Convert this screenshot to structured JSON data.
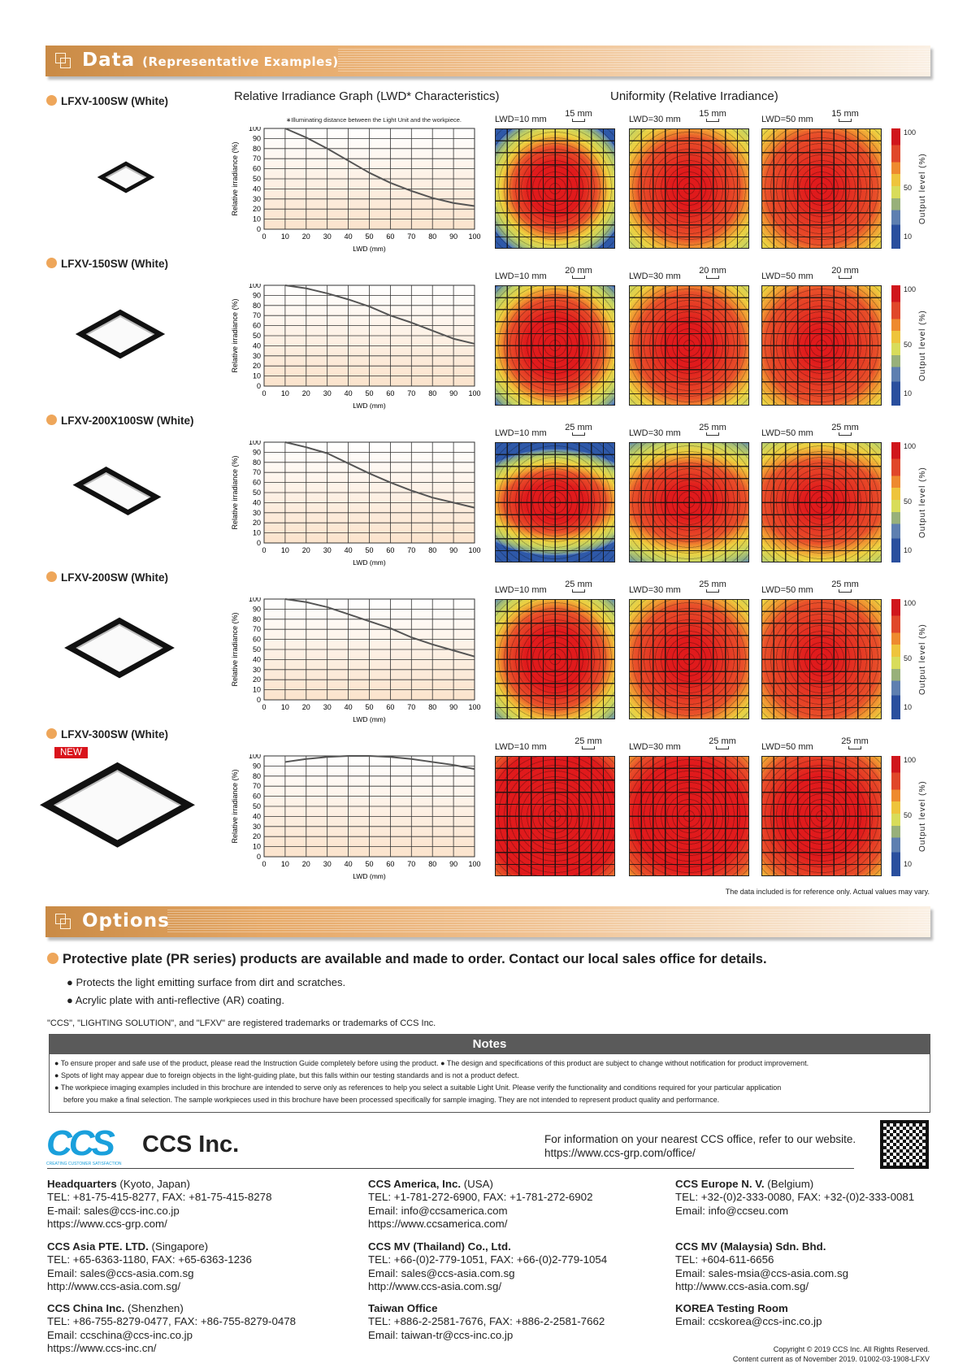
{
  "data_section": {
    "title": "Data",
    "subtitle": "(Representative Examples)",
    "graph_title": "Relative Irradiance Graph (LWD* Characteristics)",
    "uniformity_title": "Uniformity (Relative Irradiance)",
    "footnote": "∗Illuminating distance between the Light Unit and the workpiece.",
    "colorbar_label": "Output level (%)",
    "colorbar_ticks": [
      "100",
      "50",
      "10"
    ],
    "disclaimer": "The data included is for reference only. Actual values may vary."
  },
  "products": [
    {
      "name": "LFXV-100SW (White)",
      "scale": "15 mm",
      "lwd_labels": [
        "LWD=10 mm",
        "LWD=30 mm",
        "LWD=50 mm"
      ]
    },
    {
      "name": "LFXV-150SW (White)",
      "scale": "20 mm",
      "lwd_labels": [
        "LWD=10 mm",
        "LWD=30 mm",
        "LWD=50 mm"
      ]
    },
    {
      "name": "LFXV-200X100SW (White)",
      "scale": "25 mm",
      "lwd_labels": [
        "LWD=10 mm",
        "LWD=30 mm",
        "LWD=50 mm"
      ]
    },
    {
      "name": "LFXV-200SW (White)",
      "scale": "25 mm",
      "lwd_labels": [
        "LWD=10 mm",
        "LWD=30 mm",
        "LWD=50 mm"
      ]
    },
    {
      "name": "LFXV-300SW (White)",
      "badge": "NEW",
      "scale": "25 mm",
      "lwd_labels": [
        "LWD=10 mm",
        "LWD=30 mm",
        "LWD=50 mm"
      ]
    }
  ],
  "chart_data": [
    {
      "type": "line",
      "title": "LFXV-100SW (White)",
      "xlabel": "LWD (mm)",
      "ylabel": "Relative irradiance (%)",
      "xlim": [
        0,
        100
      ],
      "ylim": [
        0,
        100
      ],
      "xticks": [
        0,
        10,
        20,
        30,
        40,
        50,
        60,
        70,
        80,
        90,
        100
      ],
      "yticks": [
        0,
        10,
        20,
        30,
        40,
        50,
        60,
        70,
        80,
        90,
        100
      ],
      "x": [
        10,
        20,
        30,
        40,
        50,
        60,
        70,
        80,
        90,
        100
      ],
      "y": [
        100,
        91,
        80,
        68,
        56,
        46,
        38,
        31,
        26,
        23
      ]
    },
    {
      "type": "line",
      "title": "LFXV-150SW (White)",
      "xlabel": "LWD (mm)",
      "ylabel": "Relative irradiance (%)",
      "xlim": [
        0,
        100
      ],
      "ylim": [
        0,
        100
      ],
      "xticks": [
        0,
        10,
        20,
        30,
        40,
        50,
        60,
        70,
        80,
        90,
        100
      ],
      "yticks": [
        0,
        10,
        20,
        30,
        40,
        50,
        60,
        70,
        80,
        90,
        100
      ],
      "x": [
        10,
        20,
        30,
        40,
        50,
        60,
        70,
        80,
        90,
        100
      ],
      "y": [
        100,
        97,
        92,
        86,
        79,
        70,
        63,
        55,
        47,
        42
      ]
    },
    {
      "type": "line",
      "title": "LFXV-200X100SW (White)",
      "xlabel": "LWD (mm)",
      "ylabel": "Relative irradiance (%)",
      "xlim": [
        0,
        100
      ],
      "ylim": [
        0,
        100
      ],
      "xticks": [
        0,
        10,
        20,
        30,
        40,
        50,
        60,
        70,
        80,
        90,
        100
      ],
      "yticks": [
        0,
        10,
        20,
        30,
        40,
        50,
        60,
        70,
        80,
        90,
        100
      ],
      "x": [
        10,
        20,
        30,
        40,
        50,
        60,
        70,
        80,
        90,
        100
      ],
      "y": [
        100,
        95,
        89,
        79,
        69,
        60,
        52,
        45,
        40,
        35
      ]
    },
    {
      "type": "line",
      "title": "LFXV-200SW (White)",
      "xlabel": "LWD (mm)",
      "ylabel": "Relative irradiance (%)",
      "xlim": [
        0,
        100
      ],
      "ylim": [
        0,
        100
      ],
      "xticks": [
        0,
        10,
        20,
        30,
        40,
        50,
        60,
        70,
        80,
        90,
        100
      ],
      "yticks": [
        0,
        10,
        20,
        30,
        40,
        50,
        60,
        70,
        80,
        90,
        100
      ],
      "x": [
        10,
        20,
        30,
        40,
        50,
        60,
        70,
        80,
        90,
        100
      ],
      "y": [
        100,
        97,
        92,
        85,
        78,
        71,
        62,
        55,
        49,
        43
      ]
    },
    {
      "type": "line",
      "title": "LFXV-300SW (White)",
      "xlabel": "LWD (mm)",
      "ylabel": "Relative irradiance (%)",
      "xlim": [
        0,
        100
      ],
      "ylim": [
        0,
        100
      ],
      "xticks": [
        0,
        10,
        20,
        30,
        40,
        50,
        60,
        70,
        80,
        90,
        100
      ],
      "yticks": [
        0,
        10,
        20,
        30,
        40,
        50,
        60,
        70,
        80,
        90,
        100
      ],
      "x": [
        10,
        20,
        30,
        40,
        50,
        60,
        70,
        80,
        90,
        100
      ],
      "y": [
        94,
        97,
        99,
        100,
        100,
        99,
        97,
        94,
        91,
        87
      ]
    }
  ],
  "options": {
    "title": "Options",
    "headline": "Protective plate (PR series) products are available and made to order. Contact our local sales office for details.",
    "bullets": [
      "Protects the light emitting surface from dirt and scratches.",
      "Acrylic plate with anti-reflective (AR) coating."
    ],
    "trademark": "\"CCS\", \"LIGHTING SOLUTION\", and \"LFXV\" are registered trademarks or trademarks of CCS Inc."
  },
  "notes": {
    "title": "Notes",
    "items": [
      "To ensure proper and safe use of the product, please read the Instruction Guide completely before using the product.",
      "The design and specifications of this product are subject to change without notification for product improvement.",
      "Spots of light may appear due to foreign objects in the light-guiding plate, but this falls within our testing standards and is not a product defect.",
      "The workpiece imaging examples included in this brochure are intended to serve only as references to help you select a suitable Light Unit. Please verify the functionality and conditions required for your particular application",
      "before you make a final selection. The sample workpieces used in this brochure have been processed specifically for sample imaging. They are not intended to represent product quality and performance."
    ]
  },
  "company": {
    "logo": "CCS",
    "tagline": "Creating Customer Satisfaction",
    "name": "CCS Inc.",
    "info": "For information on your nearest CCS office, refer to our website.",
    "url": "https://www.ccs-grp.com/office/"
  },
  "offices": [
    {
      "name": "Headquarters",
      "loc": " (Kyoto, Japan)",
      "lines": [
        "TEL: +81-75-415-8277, FAX: +81-75-415-8278",
        "E-mail: sales@ccs-inc.co.jp",
        "https://www.ccs-grp.com/"
      ]
    },
    {
      "name": "CCS America, Inc.",
      "loc": " (USA)",
      "lines": [
        "TEL: +1-781-272-6900, FAX: +1-781-272-6902",
        "Email: info@ccsamerica.com",
        "https://www.ccsamerica.com/"
      ]
    },
    {
      "name": "CCS Europe N. V.",
      "loc": " (Belgium)",
      "lines": [
        "TEL: +32-(0)2-333-0080, FAX: +32-(0)2-333-0081",
        "Email: info@ccseu.com"
      ]
    },
    {
      "name": "CCS Asia PTE. LTD.",
      "loc": " (Singapore)",
      "lines": [
        "TEL: +65-6363-1180, FAX: +65-6363-1236",
        "Email: sales@ccs-asia.com.sg",
        "http://www.ccs-asia.com.sg/"
      ]
    },
    {
      "name": "CCS MV (Thailand) Co., Ltd.",
      "loc": "",
      "lines": [
        "TEL: +66-(0)2-779-1051, FAX: +66-(0)2-779-1054",
        "Email: sales@ccs-asia.com.sg",
        "http://www.ccs-asia.com.sg/"
      ]
    },
    {
      "name": "CCS MV (Malaysia) Sdn. Bhd.",
      "loc": "",
      "lines": [
        "TEL: +604-611-6656",
        "Email: sales-msia@ccs-asia.com.sg",
        "http://www.ccs-asia.com.sg/"
      ]
    },
    {
      "name": "CCS China Inc.",
      "loc": " (Shenzhen)",
      "lines": [
        "TEL: +86-755-8279-0477, FAX: +86-755-8279-0478",
        "Email: ccschina@ccs-inc.co.jp",
        "https://www.ccs-inc.cn/"
      ]
    },
    {
      "name": "Taiwan Office",
      "loc": "",
      "lines": [
        "TEL: +886-2-2581-7676, FAX: +886-2-2581-7662",
        "Email: taiwan-tr@ccs-inc.co.jp"
      ]
    },
    {
      "name": "KOREA Testing Room",
      "loc": "",
      "lines": [
        "Email: ccskorea@ccs-inc.co.jp"
      ]
    }
  ],
  "copyright": [
    "Copyright © 2019 CCS Inc. All Rights Reserved.",
    "Content current as of November 2019. 01002-03-1908-LFXV"
  ],
  "colors": {
    "accent": "#eea65a",
    "banner": "#d9965a",
    "badge": "#d9141c",
    "notes_header": "#5a5a5a",
    "logo": "#1aa0dc"
  }
}
